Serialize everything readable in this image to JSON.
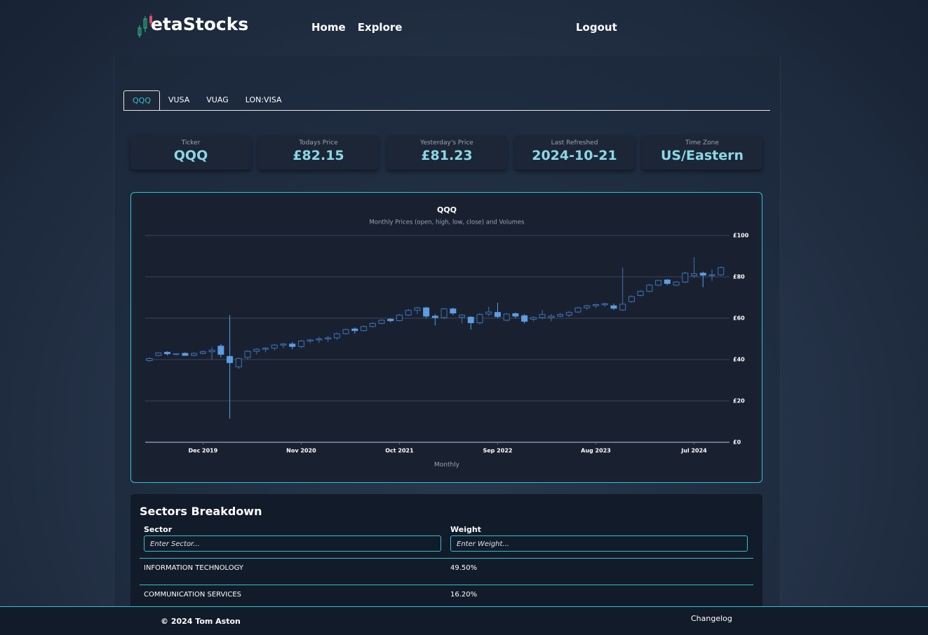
{
  "nav": {
    "brand": "etaStocks",
    "links": [
      "Home",
      "Explore"
    ],
    "logout": "Logout"
  },
  "tabs": [
    "QQQ",
    "VUSA",
    "VUAG",
    "LON:VISA"
  ],
  "stats": [
    {
      "label": "Ticker",
      "value": "QQQ"
    },
    {
      "label": "Todays Price",
      "value": "£82.15"
    },
    {
      "label": "Yesterday's Price",
      "value": "£81.23"
    },
    {
      "label": "Last Refreshed",
      "value": "2024-10-21"
    },
    {
      "label": "Time Zone",
      "value": "US/Eastern"
    }
  ],
  "chart_data": {
    "type": "candlestick",
    "title": "QQQ",
    "subtitle": "Monthly Prices (open, high, low, close) and Volumes",
    "x_label": "Monthly",
    "x": [
      "2019-06",
      "2019-07",
      "2019-08",
      "2019-09",
      "2019-10",
      "2019-11",
      "2019-12",
      "2020-01",
      "2020-02",
      "2020-03",
      "2020-04",
      "2020-05",
      "2020-06",
      "2020-07",
      "2020-08",
      "2020-09",
      "2020-10",
      "2020-11",
      "2020-12",
      "2021-01",
      "2021-02",
      "2021-03",
      "2021-04",
      "2021-05",
      "2021-06",
      "2021-07",
      "2021-08",
      "2021-09",
      "2021-10",
      "2021-11",
      "2021-12",
      "2022-01",
      "2022-02",
      "2022-03",
      "2022-04",
      "2022-05",
      "2022-06",
      "2022-07",
      "2022-08",
      "2022-09",
      "2022-10",
      "2022-11",
      "2022-12",
      "2023-01",
      "2023-02",
      "2023-03",
      "2023-04",
      "2023-05",
      "2023-06",
      "2023-07",
      "2023-08",
      "2023-09",
      "2023-10",
      "2023-11",
      "2023-12",
      "2024-01",
      "2024-02",
      "2024-03",
      "2024-04",
      "2024-05",
      "2024-06",
      "2024-07",
      "2024-08",
      "2024-09",
      "2024-10"
    ],
    "open": [
      39.5,
      42,
      43.5,
      42.6,
      43,
      42,
      43,
      43.8,
      46.5,
      41.5,
      36.5,
      41,
      44,
      45,
      45.5,
      47,
      47.5,
      46.3,
      49,
      49.5,
      50,
      50.5,
      52.5,
      54.8,
      54,
      56,
      57.5,
      59.5,
      58.8,
      61.5,
      63.8,
      65,
      61,
      60.3,
      64.5,
      60.5,
      60.5,
      57.8,
      62,
      62.8,
      59,
      62.2,
      61.2,
      59.5,
      60.3,
      60.3,
      61,
      61.5,
      63,
      65,
      66,
      66.5,
      66,
      64,
      68,
      71,
      73,
      76,
      78.5,
      76,
      77.5,
      80.5,
      81.8,
      80.6,
      81
    ],
    "high": [
      41,
      43.5,
      44,
      43,
      43.5,
      43.5,
      44.5,
      46,
      47.5,
      61.5,
      41,
      44.5,
      45.5,
      46,
      47.5,
      48,
      48.5,
      49.5,
      50,
      51,
      51.5,
      53,
      55,
      55.5,
      56.5,
      58,
      59.5,
      60,
      62,
      64.5,
      65.5,
      65.5,
      62,
      65,
      65,
      62,
      61,
      62.5,
      65.5,
      67.5,
      62.5,
      62.8,
      62,
      61,
      64,
      62,
      62.5,
      63.5,
      65.5,
      66.5,
      67,
      67.5,
      67,
      84.5,
      71,
      73.5,
      76.5,
      78.5,
      79,
      78,
      82.5,
      89.5,
      82.5,
      83.5,
      85
    ],
    "low": [
      39,
      41.5,
      42,
      42,
      41.8,
      41.5,
      42.5,
      40,
      41,
      11.5,
      35.5,
      40,
      42.5,
      43.5,
      44.5,
      45.5,
      45,
      45.5,
      48,
      48,
      48.5,
      49.5,
      52,
      52.5,
      53.5,
      55.5,
      57,
      58,
      58.5,
      61,
      62,
      60,
      56.5,
      59.5,
      61.5,
      57.5,
      54.5,
      57,
      61,
      60,
      58.5,
      60,
      57.5,
      58.5,
      59.5,
      58.5,
      60.5,
      60.5,
      62.5,
      64,
      65,
      65.5,
      64,
      63.5,
      67.5,
      70.5,
      72.5,
      75.5,
      76,
      75.5,
      77,
      79.5,
      75,
      78,
      80.5
    ],
    "close": [
      40.5,
      43.2,
      42.8,
      42.8,
      42,
      43,
      43.8,
      44.5,
      42.5,
      38.5,
      40.5,
      44,
      45,
      45.5,
      47,
      47.5,
      46.3,
      49,
      49.5,
      50,
      50.5,
      52.5,
      54.5,
      54,
      56,
      57.5,
      59,
      58.8,
      61.5,
      63.8,
      65,
      61,
      60.3,
      64.5,
      62.5,
      61.5,
      57.8,
      61.8,
      63,
      60.8,
      62,
      61,
      58.5,
      60.3,
      61.8,
      61,
      61.8,
      62.8,
      65,
      66,
      66.6,
      67,
      64.8,
      66.8,
      70.5,
      73,
      76,
      78.3,
      76.8,
      77.5,
      81.8,
      81.5,
      80.8,
      81,
      84.5
    ],
    "ylim": [
      0,
      100
    ],
    "yticks": [
      {
        "value": 0,
        "label": "£0"
      },
      {
        "value": 20,
        "label": "£20"
      },
      {
        "value": 40,
        "label": "£40"
      },
      {
        "value": 60,
        "label": "£60"
      },
      {
        "value": 80,
        "label": "£80"
      },
      {
        "value": 100,
        "label": "£100"
      }
    ],
    "xticks": [
      {
        "value": "2019-12",
        "label": "Dec 2019"
      },
      {
        "value": "2020-11",
        "label": "Nov 2020"
      },
      {
        "value": "2021-10",
        "label": "Oct 2021"
      },
      {
        "value": "2022-09",
        "label": "Sep 2022"
      },
      {
        "value": "2023-08",
        "label": "Aug 2023"
      },
      {
        "value": "2024-07",
        "label": "Jul 2024"
      }
    ],
    "grid": true,
    "rising_color": "#3f72b5",
    "falling_color": "#5c9de3"
  },
  "sectors": {
    "title": "Sectors Breakdown",
    "headers": [
      "Sector",
      "Weight"
    ],
    "placeholders": [
      "Enter Sector...",
      "Enter Weight..."
    ],
    "rows": [
      [
        "INFORMATION TECHNOLOGY",
        "49.50%"
      ],
      [
        "COMMUNICATION SERVICES",
        "16.20%"
      ]
    ]
  },
  "footer": {
    "copyright": "© 2024 Tom Aston",
    "changelog": "Changelog"
  }
}
